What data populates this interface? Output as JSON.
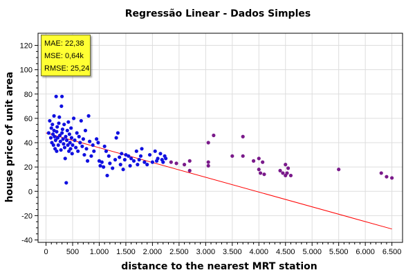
{
  "chart_data": {
    "type": "scatter",
    "title": "Regressão Linear - Dados Simples",
    "xlabel": "distance to the nearest MRT station",
    "ylabel": "house price of unit area",
    "xlim": [
      -150,
      6700
    ],
    "ylim": [
      -42,
      130
    ],
    "xticks": [
      0,
      500,
      1000,
      1500,
      2000,
      2500,
      3000,
      3500,
      4000,
      4500,
      5000,
      5500,
      6000,
      6500
    ],
    "xtick_labels": [
      "0",
      "500",
      "1.000",
      "1.500",
      "2.000",
      "2.500",
      "3.000",
      "3.500",
      "4.000",
      "4.500",
      "5.000",
      "5.500",
      "6.000",
      "6.500"
    ],
    "yticks": [
      -40,
      -20,
      0,
      20,
      40,
      60,
      80,
      100,
      120
    ],
    "ytick_labels": [
      "-40",
      "-20",
      "0",
      "20",
      "40",
      "60",
      "80",
      "100",
      "120"
    ],
    "grid": true,
    "series": [
      {
        "color": "#1010e0",
        "points": [
          [
            50,
            48
          ],
          [
            70,
            58
          ],
          [
            90,
            44
          ],
          [
            100,
            52
          ],
          [
            110,
            40
          ],
          [
            120,
            55
          ],
          [
            130,
            47
          ],
          [
            140,
            38
          ],
          [
            150,
            50
          ],
          [
            150,
            62
          ],
          [
            160,
            45
          ],
          [
            170,
            35
          ],
          [
            180,
            42
          ],
          [
            190,
            78
          ],
          [
            200,
            49
          ],
          [
            200,
            33
          ],
          [
            210,
            53
          ],
          [
            220,
            44
          ],
          [
            230,
            38
          ],
          [
            240,
            56
          ],
          [
            250,
            61
          ],
          [
            260,
            46
          ],
          [
            270,
            41
          ],
          [
            280,
            34
          ],
          [
            290,
            70
          ],
          [
            300,
            78
          ],
          [
            300,
            48
          ],
          [
            310,
            51
          ],
          [
            320,
            43
          ],
          [
            330,
            39
          ],
          [
            340,
            55
          ],
          [
            350,
            36
          ],
          [
            360,
            27
          ],
          [
            370,
            45
          ],
          [
            380,
            7
          ],
          [
            390,
            42
          ],
          [
            400,
            50
          ],
          [
            410,
            38
          ],
          [
            420,
            57
          ],
          [
            430,
            33
          ],
          [
            440,
            47
          ],
          [
            450,
            40
          ],
          [
            460,
            35
          ],
          [
            470,
            52
          ],
          [
            480,
            44
          ],
          [
            490,
            31
          ],
          [
            500,
            38
          ],
          [
            520,
            60
          ],
          [
            540,
            42
          ],
          [
            560,
            36
          ],
          [
            580,
            48
          ],
          [
            600,
            33
          ],
          [
            620,
            45
          ],
          [
            640,
            40
          ],
          [
            660,
            58
          ],
          [
            680,
            37
          ],
          [
            700,
            43
          ],
          [
            720,
            30
          ],
          [
            740,
            50
          ],
          [
            760,
            35
          ],
          [
            780,
            25
          ],
          [
            800,
            62
          ],
          [
            820,
            41
          ],
          [
            850,
            29
          ],
          [
            880,
            38
          ],
          [
            900,
            33
          ],
          [
            950,
            43
          ],
          [
            980,
            40
          ],
          [
            1000,
            25
          ],
          [
            1020,
            21
          ],
          [
            1050,
            24
          ],
          [
            1080,
            20
          ],
          [
            1100,
            37
          ],
          [
            1130,
            33
          ],
          [
            1150,
            13
          ],
          [
            1180,
            29
          ],
          [
            1200,
            23
          ],
          [
            1250,
            19
          ],
          [
            1300,
            26
          ],
          [
            1320,
            44
          ],
          [
            1350,
            48
          ],
          [
            1380,
            28
          ],
          [
            1400,
            22
          ],
          [
            1420,
            31
          ],
          [
            1450,
            18
          ],
          [
            1480,
            26
          ],
          [
            1500,
            30
          ],
          [
            1550,
            29
          ],
          [
            1580,
            21
          ],
          [
            1600,
            27
          ],
          [
            1650,
            25
          ],
          [
            1700,
            33
          ],
          [
            1720,
            22
          ],
          [
            1750,
            26
          ],
          [
            1780,
            29
          ],
          [
            1800,
            35
          ],
          [
            1850,
            24
          ],
          [
            1900,
            22
          ],
          [
            1950,
            30
          ],
          [
            2000,
            24
          ],
          [
            2050,
            33
          ],
          [
            2080,
            25
          ],
          [
            2100,
            27
          ],
          [
            2150,
            31
          ],
          [
            2180,
            26
          ],
          [
            2200,
            24
          ],
          [
            2230,
            29
          ],
          [
            2250,
            27
          ]
        ]
      },
      {
        "color": "#7a1a8a",
        "points": [
          [
            2350,
            24
          ],
          [
            2450,
            23
          ],
          [
            2600,
            22
          ],
          [
            2700,
            25
          ],
          [
            2700,
            17
          ],
          [
            3050,
            40
          ],
          [
            3050,
            24
          ],
          [
            3050,
            21
          ],
          [
            3150,
            46
          ],
          [
            3500,
            29
          ],
          [
            3700,
            45
          ],
          [
            3700,
            29
          ],
          [
            3900,
            25
          ],
          [
            4000,
            18
          ],
          [
            4000,
            27
          ],
          [
            4030,
            15
          ],
          [
            4070,
            24
          ],
          [
            4100,
            14
          ],
          [
            4400,
            17
          ],
          [
            4450,
            15
          ],
          [
            4500,
            22
          ],
          [
            4500,
            13
          ],
          [
            4530,
            15
          ],
          [
            4550,
            19
          ],
          [
            4600,
            13
          ],
          [
            5500,
            18
          ],
          [
            6300,
            15
          ],
          [
            6400,
            12
          ],
          [
            6500,
            11
          ]
        ]
      }
    ],
    "regression_line": {
      "color": "#ff0000",
      "x": [
        0,
        6500
      ],
      "y": [
        48,
        -31
      ]
    }
  },
  "metrics": {
    "mae": "MAE: 22,38",
    "mse": "MSE: 0,64k",
    "rmse": "RMSE: 25,24"
  }
}
